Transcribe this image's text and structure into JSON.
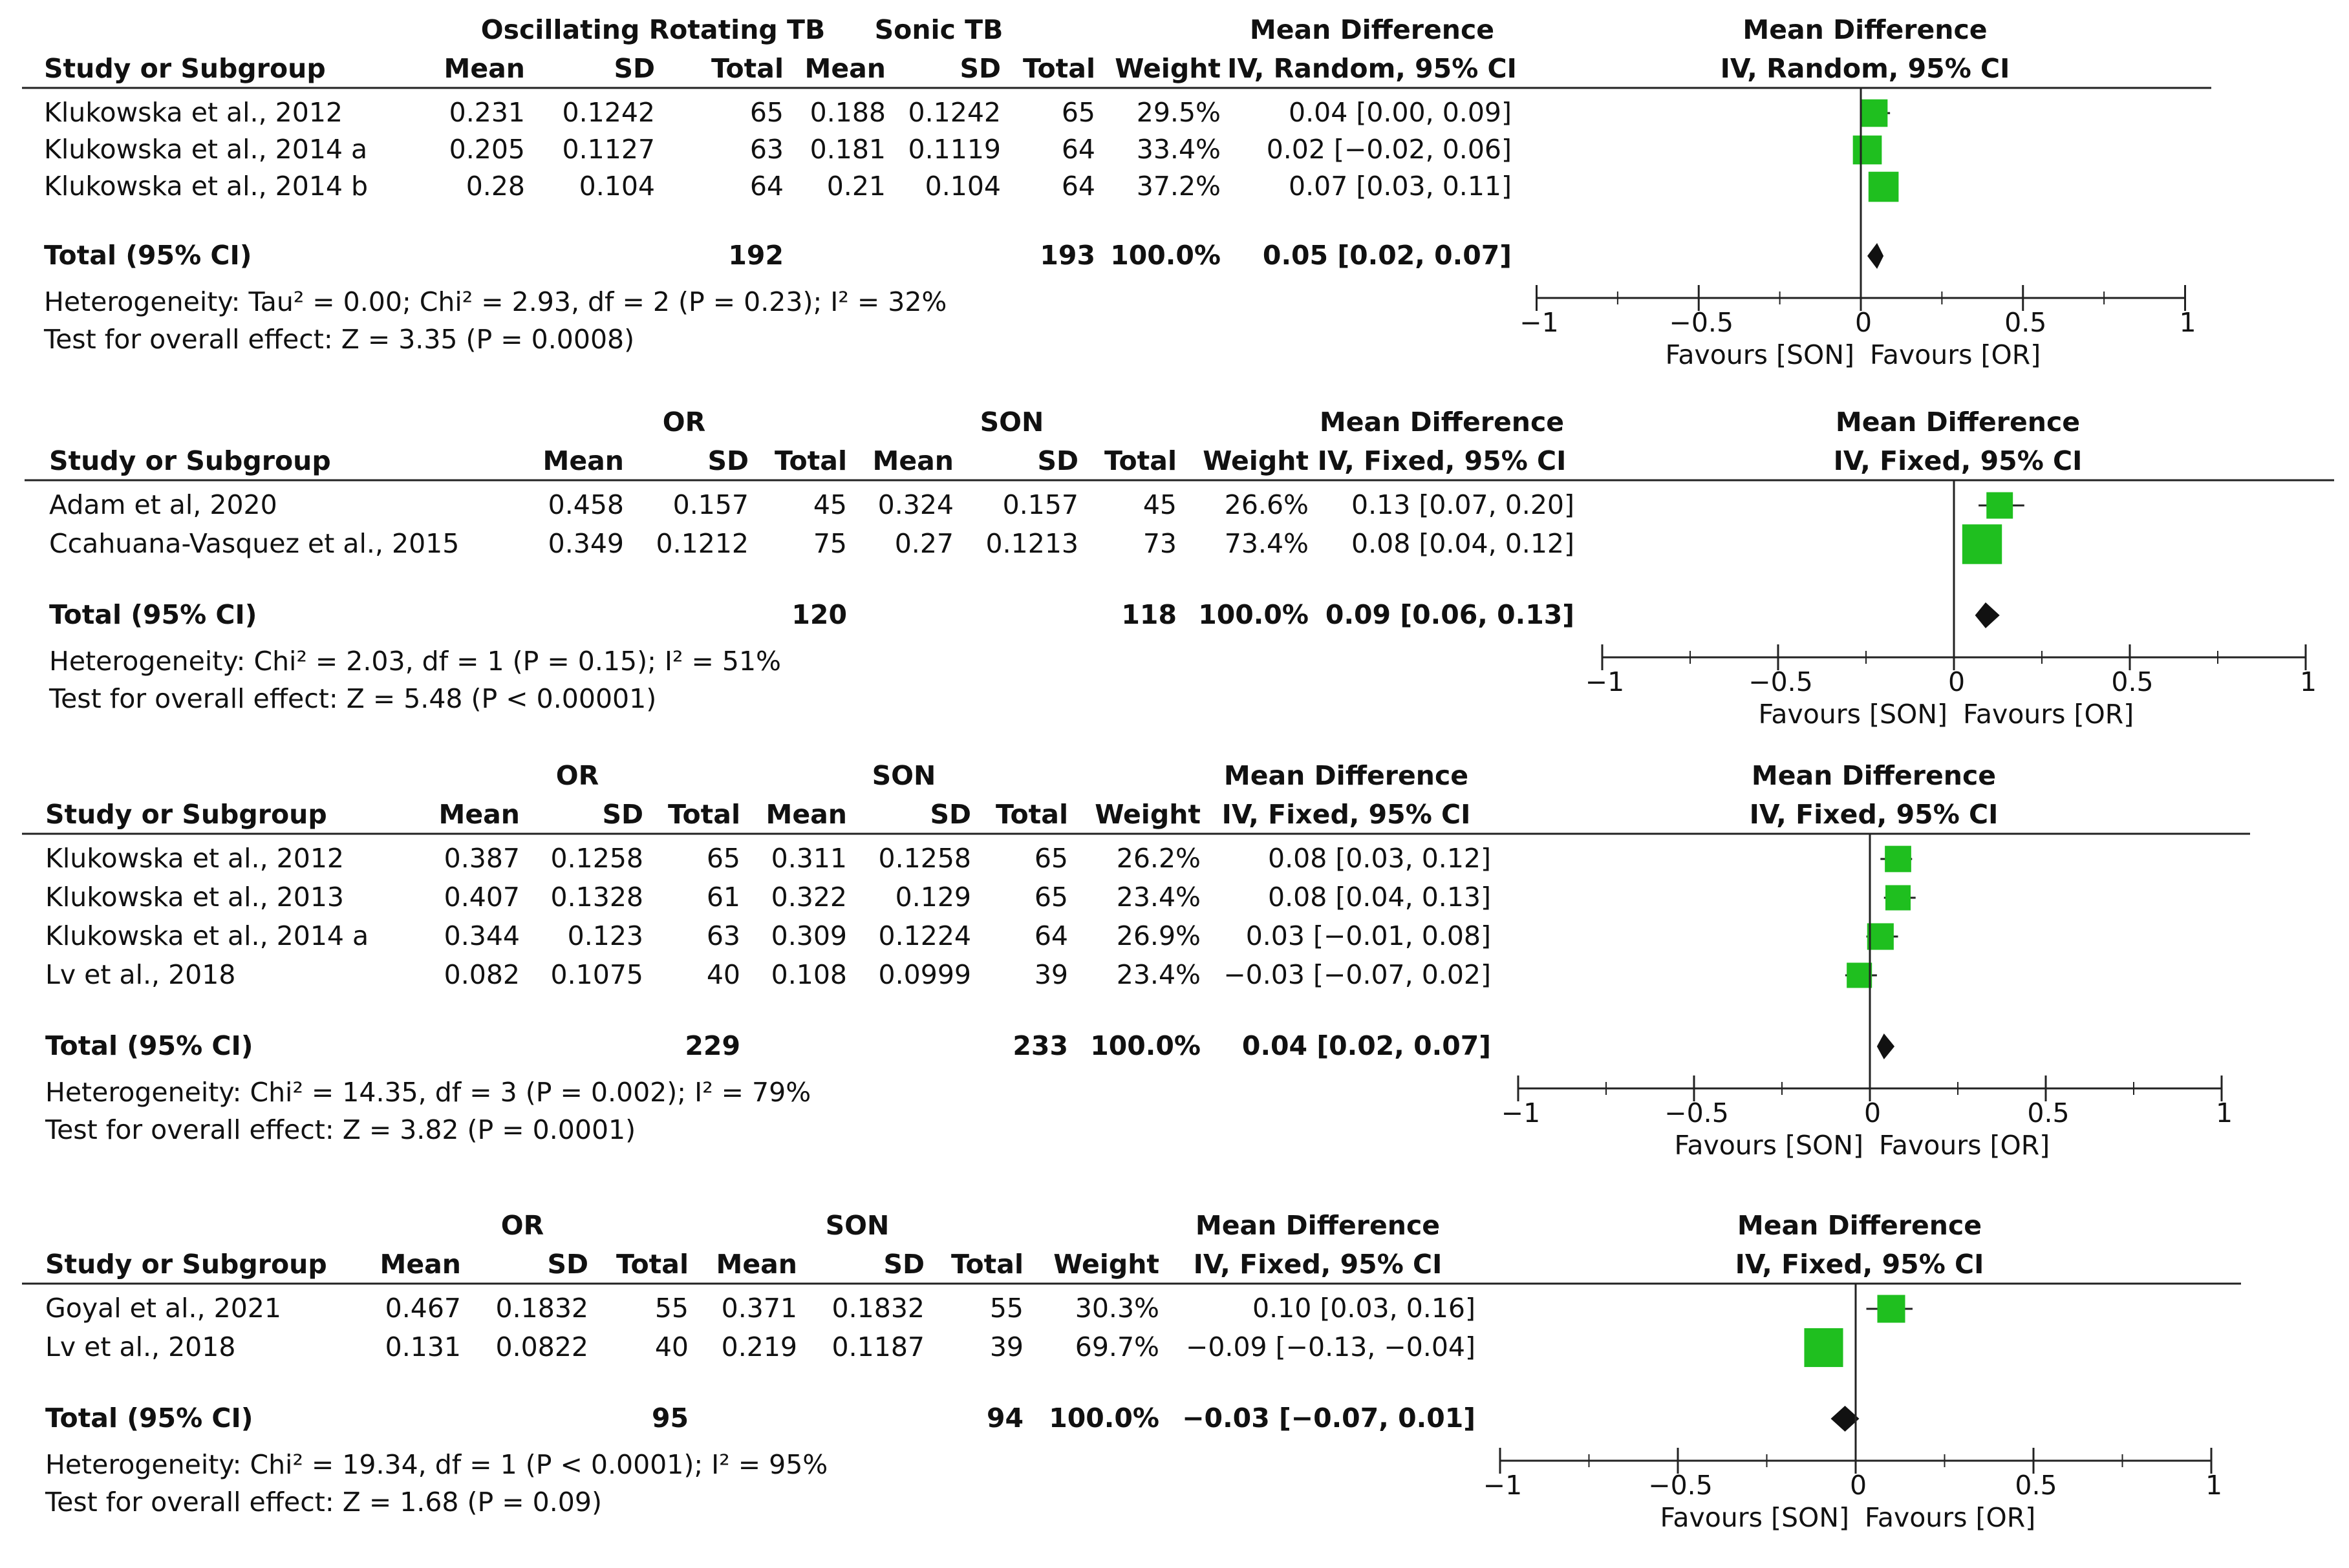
{
  "colors": {
    "marker": "#1fbf1f",
    "diamond": "#111111",
    "line": "#222222",
    "text": "#111111"
  },
  "chart_data": [
    {
      "type": "forest",
      "group_a": "Oscillating Rotating TB",
      "group_b": "Sonic TB",
      "headers": {
        "study": "Study or Subgroup",
        "mean": "Mean",
        "sd": "SD",
        "total": "Total",
        "weight": "Weight",
        "md_title": "Mean Difference",
        "md_method": "IV, Random, 95% CI"
      },
      "studies": [
        {
          "name": "Klukowska et al., 2012",
          "mean_a": "0.231",
          "sd_a": "0.1242",
          "n_a": "65",
          "mean_b": "0.188",
          "sd_b": "0.1242",
          "n_b": "65",
          "weight": "29.5%",
          "ci_text": "0.04 [0.00, 0.09]",
          "md": 0.04,
          "lo": 0.0,
          "hi": 0.09,
          "w": 29.5
        },
        {
          "name": "Klukowska et al., 2014 a",
          "mean_a": "0.205",
          "sd_a": "0.1127",
          "n_a": "63",
          "mean_b": "0.181",
          "sd_b": "0.1119",
          "n_b": "64",
          "weight": "33.4%",
          "ci_text": "0.02 [−0.02, 0.06]",
          "md": 0.02,
          "lo": -0.02,
          "hi": 0.06,
          "w": 33.4
        },
        {
          "name": "Klukowska et al., 2014 b",
          "mean_a": "0.28",
          "sd_a": "0.104",
          "n_a": "64",
          "mean_b": "0.21",
          "sd_b": "0.104",
          "n_b": "64",
          "weight": "37.2%",
          "ci_text": "0.07 [0.03, 0.11]",
          "md": 0.07,
          "lo": 0.03,
          "hi": 0.11,
          "w": 37.2
        }
      ],
      "total": {
        "label": "Total (95% CI)",
        "n_a": "192",
        "n_b": "193",
        "weight": "100.0%",
        "ci_text": "0.05 [0.02, 0.07]",
        "md": 0.05,
        "lo": 0.02,
        "hi": 0.07
      },
      "heterogeneity": "Heterogeneity: Tau² = 0.00; Chi² = 2.93, df = 2 (P = 0.23); I² = 32%",
      "overall_effect": "Test for overall effect: Z = 3.35 (P = 0.0008)",
      "axis": {
        "min": -1,
        "max": 1,
        "ticks": [
          -1,
          -0.5,
          0,
          0.5,
          1
        ],
        "tick_labels": [
          "−1",
          "−0.5",
          "0",
          "0.5",
          "1"
        ],
        "favours_left": "Favours [SON]",
        "favours_right": "Favours [OR]"
      }
    },
    {
      "type": "forest",
      "group_a": "OR",
      "group_b": "SON",
      "headers": {
        "study": "Study or Subgroup",
        "mean": "Mean",
        "sd": "SD",
        "total": "Total",
        "weight": "Weight",
        "md_title": "Mean Difference",
        "md_method": "IV, Fixed, 95% CI"
      },
      "studies": [
        {
          "name": "Adam et al, 2020",
          "mean_a": "0.458",
          "sd_a": "0.157",
          "n_a": "45",
          "mean_b": "0.324",
          "sd_b": "0.157",
          "n_b": "45",
          "weight": "26.6%",
          "ci_text": "0.13 [0.07, 0.20]",
          "md": 0.13,
          "lo": 0.07,
          "hi": 0.2,
          "w": 26.6
        },
        {
          "name": "Ccahuana-Vasquez et al., 2015",
          "mean_a": "0.349",
          "sd_a": "0.1212",
          "n_a": "75",
          "mean_b": "0.27",
          "sd_b": "0.1213",
          "n_b": "73",
          "weight": "73.4%",
          "ci_text": "0.08 [0.04, 0.12]",
          "md": 0.08,
          "lo": 0.04,
          "hi": 0.12,
          "w": 73.4
        }
      ],
      "total": {
        "label": "Total (95% CI)",
        "n_a": "120",
        "n_b": "118",
        "weight": "100.0%",
        "ci_text": "0.09 [0.06, 0.13]",
        "md": 0.09,
        "lo": 0.06,
        "hi": 0.13
      },
      "heterogeneity": "Heterogeneity: Chi² = 2.03, df = 1 (P = 0.15); I² = 51%",
      "overall_effect": "Test for overall effect: Z = 5.48 (P < 0.00001)",
      "axis": {
        "min": -1,
        "max": 1,
        "ticks": [
          -1,
          -0.5,
          0,
          0.5,
          1
        ],
        "tick_labels": [
          "−1",
          "−0.5",
          "0",
          "0.5",
          "1"
        ],
        "favours_left": "Favours [SON]",
        "favours_right": "Favours [OR]"
      }
    },
    {
      "type": "forest",
      "group_a": "OR",
      "group_b": "SON",
      "headers": {
        "study": "Study or Subgroup",
        "mean": "Mean",
        "sd": "SD",
        "total": "Total",
        "weight": "Weight",
        "md_title": "Mean Difference",
        "md_method": "IV, Fixed, 95% CI"
      },
      "studies": [
        {
          "name": "Klukowska et al., 2012",
          "mean_a": "0.387",
          "sd_a": "0.1258",
          "n_a": "65",
          "mean_b": "0.311",
          "sd_b": "0.1258",
          "n_b": "65",
          "weight": "26.2%",
          "ci_text": "0.08 [0.03, 0.12]",
          "md": 0.08,
          "lo": 0.03,
          "hi": 0.12,
          "w": 26.2
        },
        {
          "name": "Klukowska et al., 2013",
          "mean_a": "0.407",
          "sd_a": "0.1328",
          "n_a": "61",
          "mean_b": "0.322",
          "sd_b": "0.129",
          "n_b": "65",
          "weight": "23.4%",
          "ci_text": "0.08 [0.04, 0.13]",
          "md": 0.08,
          "lo": 0.04,
          "hi": 0.13,
          "w": 23.4
        },
        {
          "name": "Klukowska et al., 2014 a",
          "mean_a": "0.344",
          "sd_a": "0.123",
          "n_a": "63",
          "mean_b": "0.309",
          "sd_b": "0.1224",
          "n_b": "64",
          "weight": "26.9%",
          "ci_text": "0.03 [−0.01, 0.08]",
          "md": 0.03,
          "lo": -0.01,
          "hi": 0.08,
          "w": 26.9
        },
        {
          "name": "Lv et al., 2018",
          "mean_a": "0.082",
          "sd_a": "0.1075",
          "n_a": "40",
          "mean_b": "0.108",
          "sd_b": "0.0999",
          "n_b": "39",
          "weight": "23.4%",
          "ci_text": "−0.03 [−0.07, 0.02]",
          "md": -0.03,
          "lo": -0.07,
          "hi": 0.02,
          "w": 23.4
        }
      ],
      "total": {
        "label": "Total (95% CI)",
        "n_a": "229",
        "n_b": "233",
        "weight": "100.0%",
        "ci_text": "0.04 [0.02, 0.07]",
        "md": 0.04,
        "lo": 0.02,
        "hi": 0.07
      },
      "heterogeneity": "Heterogeneity: Chi² = 14.35, df = 3 (P = 0.002); I² = 79%",
      "overall_effect": "Test for overall effect: Z = 3.82 (P = 0.0001)",
      "axis": {
        "min": -1,
        "max": 1,
        "ticks": [
          -1,
          -0.5,
          0,
          0.5,
          1
        ],
        "tick_labels": [
          "−1",
          "−0.5",
          "0",
          "0.5",
          "1"
        ],
        "favours_left": "Favours [SON]",
        "favours_right": "Favours [OR]"
      }
    },
    {
      "type": "forest",
      "group_a": "OR",
      "group_b": "SON",
      "headers": {
        "study": "Study or Subgroup",
        "mean": "Mean",
        "sd": "SD",
        "total": "Total",
        "weight": "Weight",
        "md_title": "Mean Difference",
        "md_method": "IV, Fixed, 95% CI"
      },
      "studies": [
        {
          "name": "Goyal et al., 2021",
          "mean_a": "0.467",
          "sd_a": "0.1832",
          "n_a": "55",
          "mean_b": "0.371",
          "sd_b": "0.1832",
          "n_b": "55",
          "weight": "30.3%",
          "ci_text": "0.10 [0.03, 0.16]",
          "md": 0.1,
          "lo": 0.03,
          "hi": 0.16,
          "w": 30.3
        },
        {
          "name": "Lv et al., 2018",
          "mean_a": "0.131",
          "sd_a": "0.0822",
          "n_a": "40",
          "mean_b": "0.219",
          "sd_b": "0.1187",
          "n_b": "39",
          "weight": "69.7%",
          "ci_text": "−0.09 [−0.13, −0.04]",
          "md": -0.09,
          "lo": -0.13,
          "hi": -0.04,
          "w": 69.7
        }
      ],
      "total": {
        "label": "Total (95% CI)",
        "n_a": "95",
        "n_b": "94",
        "weight": "100.0%",
        "ci_text": "−0.03 [−0.07, 0.01]",
        "md": -0.03,
        "lo": -0.07,
        "hi": 0.01
      },
      "heterogeneity": "Heterogeneity: Chi² = 19.34, df = 1 (P < 0.0001); I² = 95%",
      "overall_effect": "Test for overall effect: Z = 1.68 (P = 0.09)",
      "axis": {
        "min": -1,
        "max": 1,
        "ticks": [
          -1,
          -0.5,
          0,
          0.5,
          1
        ],
        "tick_labels": [
          "−1",
          "−0.5",
          "0",
          "0.5",
          "1"
        ],
        "favours_left": "Favours [SON]",
        "favours_right": "Favours [OR]"
      }
    }
  ]
}
